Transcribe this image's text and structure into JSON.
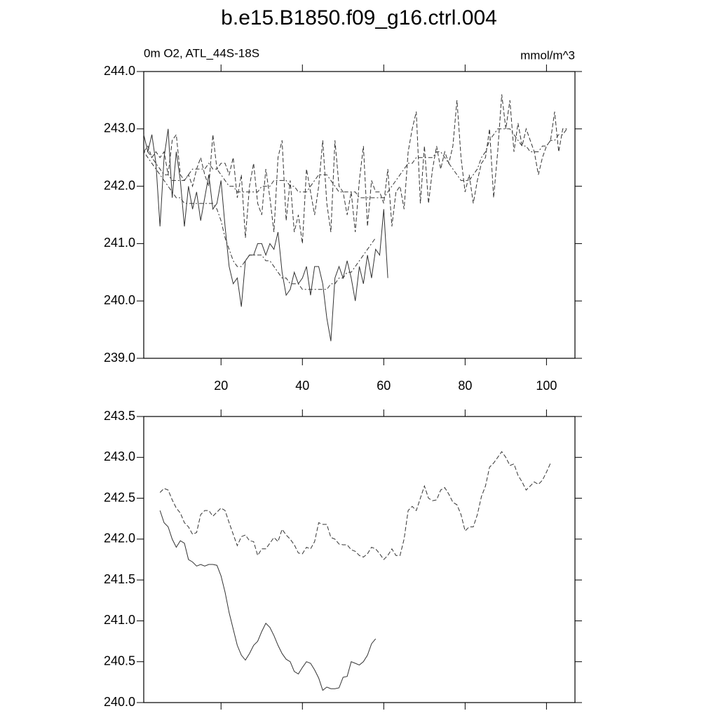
{
  "chart_data": [
    {
      "type": "line",
      "title": "b.e15.B1850.f09_g16.ctrl.004",
      "subtitle": "0m O2, ATL_44S-18S",
      "units": "mmol/m^3",
      "xlim": [
        1,
        107
      ],
      "xticks": [
        20,
        40,
        60,
        80,
        100
      ],
      "ylim": [
        239,
        244
      ],
      "yticks": [
        {
          "value": 239,
          "label": "239.0"
        },
        {
          "value": 240,
          "label": "240.0"
        },
        {
          "value": 241,
          "label": "241.0"
        },
        {
          "value": 242,
          "label": "242.0"
        },
        {
          "value": 243,
          "label": "243.0"
        },
        {
          "value": 244,
          "label": "244.0"
        }
      ],
      "series": [
        {
          "color": "#333333",
          "style": "solid",
          "x": [
            1,
            2,
            3,
            4,
            5,
            6,
            7,
            8,
            9,
            10,
            11,
            12,
            13,
            14,
            15,
            16,
            17,
            18,
            19,
            20,
            21,
            22,
            23,
            24,
            25,
            26,
            27,
            28,
            29,
            30,
            31,
            32,
            33,
            34,
            35,
            36,
            37,
            38,
            39,
            40,
            41,
            42,
            43,
            44,
            45,
            46,
            47,
            48,
            49,
            50,
            51,
            52,
            53,
            54,
            55,
            56,
            57,
            58,
            59,
            60,
            61
          ],
          "values": [
            242.9,
            242.6,
            242.9,
            242.4,
            241.3,
            242.5,
            243.0,
            241.8,
            242.6,
            242.1,
            241.3,
            242.0,
            241.6,
            241.9,
            241.4,
            241.8,
            242.2,
            241.6,
            241.7,
            242.1,
            241.3,
            240.6,
            240.3,
            240.4,
            239.9,
            240.7,
            240.8,
            240.8,
            241.0,
            241.0,
            240.8,
            241.0,
            240.9,
            241.2,
            240.5,
            240.1,
            240.2,
            240.5,
            240.3,
            240.4,
            240.6,
            240.1,
            240.6,
            240.6,
            240.3,
            239.7,
            239.3,
            240.4,
            240.6,
            240.4,
            240.7,
            240.4,
            240.0,
            240.6,
            240.3,
            240.8,
            240.4,
            240.9,
            240.8,
            241.6,
            240.4
          ]
        },
        {
          "color": "#333333",
          "style": "dashed",
          "x": [
            1,
            2,
            3,
            4,
            5,
            6,
            7,
            8,
            9,
            10,
            11,
            12,
            13,
            14,
            15,
            16,
            17,
            18,
            19,
            20,
            21,
            22,
            23,
            24,
            25,
            26,
            27,
            28,
            29,
            30,
            31,
            32,
            33,
            34,
            35,
            36,
            37,
            38,
            39,
            40,
            41,
            42,
            43,
            44,
            45,
            46,
            47,
            48,
            49,
            50,
            51,
            52,
            53,
            54,
            55,
            56,
            57,
            58,
            59,
            60,
            61,
            62,
            63,
            64,
            65,
            66,
            67,
            68,
            69,
            70,
            71,
            72,
            73,
            74,
            75,
            76,
            77,
            78,
            79,
            80,
            81,
            82,
            83,
            84,
            85,
            86,
            87,
            88,
            89,
            90,
            91,
            92,
            93,
            94,
            95,
            96,
            97,
            98,
            99,
            100,
            101,
            102,
            103,
            104,
            105
          ],
          "values": [
            242.6,
            242.7,
            242.5,
            242.6,
            242.5,
            242.6,
            242.2,
            242.8,
            242.9,
            242.2,
            242.1,
            242.2,
            242.0,
            242.3,
            242.5,
            242.2,
            242.0,
            242.9,
            242.3,
            242.4,
            242.4,
            242.2,
            242.5,
            241.8,
            242.2,
            241.1,
            242.0,
            242.4,
            241.7,
            241.5,
            242.3,
            241.8,
            241.2,
            242.5,
            242.8,
            241.4,
            242.1,
            241.2,
            241.5,
            241.0,
            242.3,
            241.9,
            241.5,
            242.0,
            242.8,
            241.7,
            241.2,
            242.8,
            242.0,
            241.9,
            241.5,
            241.9,
            241.2,
            242.1,
            242.7,
            241.3,
            242.1,
            241.9,
            241.9,
            241.7,
            242.3,
            241.3,
            241.9,
            242.0,
            241.6,
            242.6,
            243.0,
            243.3,
            241.7,
            242.7,
            241.7,
            242.3,
            242.7,
            242.3,
            242.6,
            242.4,
            242.7,
            243.5,
            242.5,
            241.9,
            242.2,
            241.7,
            242.1,
            242.4,
            242.5,
            243.0,
            241.8,
            242.6,
            243.6,
            243.0,
            243.5,
            242.6,
            243.1,
            242.7,
            243.0,
            242.8,
            242.6,
            242.2,
            242.5,
            242.7,
            242.8,
            243.3,
            242.6,
            243.0,
            243.0
          ]
        },
        {
          "color": "#333333",
          "style": "dotted",
          "x": [
            1,
            2,
            3,
            4,
            5,
            6,
            7,
            8,
            9,
            10,
            11,
            12,
            13,
            14,
            15,
            16,
            17,
            18,
            19,
            20,
            21,
            22,
            23,
            24,
            25,
            26,
            27,
            28,
            29,
            30,
            31,
            32,
            33,
            34,
            35,
            36,
            37,
            38,
            39,
            40,
            41,
            42,
            43,
            44,
            45,
            46,
            47,
            48,
            49,
            50,
            51,
            52,
            53,
            54,
            55,
            56,
            57,
            58
          ],
          "values": [
            242.6,
            242.5,
            242.4,
            242.3,
            242.2,
            242.1,
            242.0,
            241.9,
            241.8,
            241.8,
            241.7,
            241.7,
            241.7,
            241.7,
            241.7,
            241.7,
            241.7,
            241.7,
            241.6,
            241.4,
            241.1,
            240.9,
            240.7,
            240.6,
            240.6,
            240.7,
            240.8,
            240.8,
            240.8,
            240.8,
            240.7,
            240.7,
            240.6,
            240.5,
            240.4,
            240.4,
            240.3,
            240.3,
            240.3,
            240.2,
            240.2,
            240.2,
            240.2,
            240.2,
            240.2,
            240.2,
            240.3,
            240.3,
            240.4,
            240.4,
            240.5,
            240.5,
            240.6,
            240.7,
            240.8,
            240.9,
            241.0,
            241.1
          ]
        },
        {
          "color": "#333333",
          "style": "dotted",
          "x": [
            1,
            2,
            3,
            4,
            5,
            6,
            7,
            8,
            9,
            10,
            11,
            12,
            13,
            14,
            15,
            16,
            17,
            18,
            19,
            20,
            21,
            22,
            23,
            24,
            25,
            26,
            27,
            28,
            29,
            30,
            31,
            32,
            33,
            34,
            35,
            36,
            37,
            38,
            39,
            40,
            41,
            42,
            43,
            44,
            45,
            46,
            47,
            48,
            49,
            50,
            51,
            52,
            53,
            54,
            55,
            56,
            57,
            58,
            59,
            60,
            61,
            62,
            63,
            64,
            65,
            66,
            67,
            68,
            69,
            70,
            71,
            72,
            73,
            74,
            75,
            76,
            77,
            78,
            79,
            80,
            81,
            82,
            83,
            84,
            85,
            86,
            87,
            88,
            89,
            90,
            91,
            92,
            93,
            94,
            95,
            96,
            97,
            98,
            99,
            100,
            101,
            102,
            103,
            104,
            105
          ],
          "values": [
            242.6,
            242.6,
            242.5,
            242.4,
            242.3,
            242.2,
            242.2,
            242.1,
            242.1,
            242.1,
            242.1,
            242.2,
            242.3,
            242.3,
            242.3,
            242.3,
            242.4,
            242.3,
            242.3,
            242.2,
            242.1,
            242.0,
            242.0,
            241.9,
            241.9,
            241.9,
            241.9,
            241.9,
            241.9,
            242.0,
            242.0,
            242.0,
            242.1,
            242.1,
            242.1,
            242.1,
            242.0,
            242.0,
            241.9,
            241.9,
            241.9,
            242.0,
            242.1,
            242.2,
            242.2,
            242.2,
            242.1,
            242.0,
            241.9,
            241.9,
            241.9,
            241.9,
            241.9,
            241.8,
            241.8,
            241.8,
            241.8,
            241.8,
            241.8,
            241.8,
            241.9,
            242.0,
            242.1,
            242.2,
            242.3,
            242.4,
            242.4,
            242.5,
            242.5,
            242.5,
            242.5,
            242.5,
            242.6,
            242.6,
            242.5,
            242.4,
            242.3,
            242.2,
            242.1,
            242.1,
            242.1,
            242.2,
            242.3,
            242.5,
            242.6,
            242.8,
            242.9,
            243.0,
            243.0,
            243.0,
            243.0,
            242.9,
            242.8,
            242.7,
            242.7,
            242.6,
            242.6,
            242.6,
            242.7,
            242.7,
            242.8,
            242.8,
            242.9,
            242.9,
            243.0
          ]
        }
      ]
    },
    {
      "type": "line",
      "xlim": [
        1,
        107
      ],
      "ylim": [
        240,
        243.5
      ],
      "yticks": [
        {
          "value": 240,
          "label": "240.0"
        },
        240.5,
        {
          "value": 241,
          "label": "241.0"
        },
        241.5,
        {
          "value": 242,
          "label": "242.0"
        },
        242.5,
        {
          "value": 243,
          "label": "243.0"
        },
        243.5
      ],
      "series": [
        {
          "color": "#333333",
          "style": "solid",
          "x": [
            5,
            6,
            7,
            8,
            9,
            10,
            11,
            12,
            13,
            14,
            15,
            16,
            17,
            18,
            19,
            20,
            21,
            22,
            23,
            24,
            25,
            26,
            27,
            28,
            29,
            30,
            31,
            32,
            33,
            34,
            35,
            36,
            37,
            38,
            39,
            40,
            41,
            42,
            43,
            44,
            45,
            46,
            47,
            48,
            49,
            50,
            51,
            52,
            53,
            54,
            55,
            56,
            57,
            58
          ],
          "values": [
            242.35,
            242.2,
            242.15,
            242.0,
            241.9,
            241.98,
            241.95,
            241.75,
            241.72,
            241.67,
            241.69,
            241.67,
            241.69,
            241.69,
            241.68,
            241.55,
            241.35,
            241.1,
            240.9,
            240.7,
            240.58,
            240.52,
            240.6,
            240.7,
            240.75,
            240.87,
            240.97,
            240.92,
            240.82,
            240.7,
            240.6,
            240.53,
            240.5,
            240.38,
            240.35,
            240.43,
            240.5,
            240.48,
            240.4,
            240.3,
            240.15,
            240.19,
            240.17,
            240.17,
            240.18,
            240.31,
            240.32,
            240.5,
            240.48,
            240.46,
            240.5,
            240.58,
            240.72,
            240.78
          ]
        },
        {
          "color": "#333333",
          "style": "dashed",
          "x": [
            5,
            6,
            7,
            8,
            9,
            10,
            11,
            12,
            13,
            14,
            15,
            16,
            17,
            18,
            19,
            20,
            21,
            22,
            23,
            24,
            25,
            26,
            27,
            28,
            29,
            30,
            31,
            32,
            33,
            34,
            35,
            36,
            37,
            38,
            39,
            40,
            41,
            42,
            43,
            44,
            45,
            46,
            47,
            48,
            49,
            50,
            51,
            52,
            53,
            54,
            55,
            56,
            57,
            58,
            59,
            60,
            61,
            62,
            63,
            64,
            65,
            66,
            67,
            68,
            69,
            70,
            71,
            72,
            73,
            74,
            75,
            76,
            77,
            78,
            79,
            80,
            81,
            82,
            83,
            84,
            85,
            86,
            87,
            88,
            89,
            90,
            91,
            92,
            93,
            94,
            95,
            96,
            97,
            98,
            99,
            100,
            101
          ],
          "values": [
            242.57,
            242.62,
            242.6,
            242.48,
            242.38,
            242.32,
            242.2,
            242.15,
            242.06,
            242.08,
            242.3,
            242.35,
            242.35,
            242.28,
            242.33,
            242.38,
            242.35,
            242.2,
            242.06,
            241.92,
            242.03,
            242.05,
            241.98,
            241.97,
            241.8,
            241.88,
            241.88,
            241.95,
            242.02,
            241.97,
            242.12,
            242.05,
            242.0,
            241.93,
            241.83,
            241.82,
            241.9,
            241.88,
            241.97,
            242.2,
            242.18,
            242.18,
            242.02,
            242.0,
            241.94,
            241.93,
            241.93,
            241.87,
            241.85,
            241.8,
            241.78,
            241.82,
            241.9,
            241.88,
            241.82,
            241.75,
            241.8,
            241.88,
            241.8,
            241.8,
            242.0,
            242.35,
            242.4,
            242.35,
            242.5,
            242.65,
            242.5,
            242.47,
            242.48,
            242.6,
            242.63,
            242.55,
            242.45,
            242.42,
            242.3,
            242.1,
            242.15,
            242.15,
            242.3,
            242.52,
            242.65,
            242.88,
            242.93,
            243.0,
            243.07,
            243.0,
            242.9,
            242.92,
            242.78,
            242.7,
            242.6,
            242.65,
            242.7,
            242.67,
            242.72,
            242.82,
            242.93
          ]
        }
      ]
    }
  ]
}
